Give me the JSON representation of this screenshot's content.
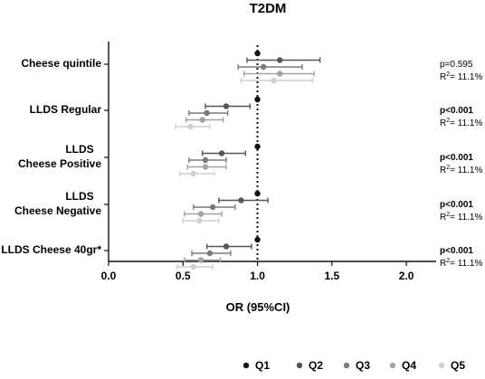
{
  "chart_data": {
    "type": "forest",
    "title": "T2DM",
    "xlabel": "OR (95%CI)",
    "xlim": [
      0.0,
      2.2
    ],
    "xticks": [
      "0.0",
      "0.5",
      "1.0",
      "1.5",
      "2.0"
    ],
    "reference_line": 1.0,
    "series": [
      {
        "name": "Q1",
        "color": "#111111"
      },
      {
        "name": "Q2",
        "color": "#555555"
      },
      {
        "name": "Q3",
        "color": "#7a7a7a"
      },
      {
        "name": "Q4",
        "color": "#a3a3a3"
      },
      {
        "name": "Q5",
        "color": "#cfcfcf"
      }
    ],
    "groups": [
      {
        "label": [
          "Cheese quintile"
        ],
        "stat": {
          "p_text": "p=0.595",
          "p_bold": false,
          "r2_text": "11.1%"
        },
        "estimates": [
          {
            "or": 1.0,
            "lo": 1.0,
            "hi": 1.0
          },
          {
            "or": 1.15,
            "lo": 0.93,
            "hi": 1.42
          },
          {
            "or": 1.04,
            "lo": 0.87,
            "hi": 1.3
          },
          {
            "or": 1.15,
            "lo": 0.91,
            "hi": 1.38
          },
          {
            "or": 1.11,
            "lo": 0.89,
            "hi": 1.37
          }
        ]
      },
      {
        "label": [
          "LLDS Regular"
        ],
        "stat": {
          "p_text": "p<0.001",
          "p_bold": true,
          "r2_text": "11.1%"
        },
        "estimates": [
          {
            "or": 1.0,
            "lo": 1.0,
            "hi": 1.0
          },
          {
            "or": 0.79,
            "lo": 0.65,
            "hi": 0.95
          },
          {
            "or": 0.66,
            "lo": 0.54,
            "hi": 0.8
          },
          {
            "or": 0.63,
            "lo": 0.52,
            "hi": 0.77
          },
          {
            "or": 0.55,
            "lo": 0.45,
            "hi": 0.68
          }
        ]
      },
      {
        "label": [
          "LLDS",
          "Cheese Positive"
        ],
        "stat": {
          "p_text": "p<0.001",
          "p_bold": true,
          "r2_text": "11.1%"
        },
        "estimates": [
          {
            "or": 1.0,
            "lo": 1.0,
            "hi": 1.0
          },
          {
            "or": 0.76,
            "lo": 0.63,
            "hi": 0.92
          },
          {
            "or": 0.65,
            "lo": 0.54,
            "hi": 0.79
          },
          {
            "or": 0.65,
            "lo": 0.53,
            "hi": 0.79
          },
          {
            "or": 0.57,
            "lo": 0.48,
            "hi": 0.71
          }
        ]
      },
      {
        "label": [
          "LLDS",
          "Cheese Negative"
        ],
        "stat": {
          "p_text": "p<0.001",
          "p_bold": true,
          "r2_text": "11.1%"
        },
        "estimates": [
          {
            "or": 1.0,
            "lo": 1.0,
            "hi": 1.0
          },
          {
            "or": 0.89,
            "lo": 0.74,
            "hi": 1.07
          },
          {
            "or": 0.7,
            "lo": 0.57,
            "hi": 0.85
          },
          {
            "or": 0.62,
            "lo": 0.51,
            "hi": 0.76
          },
          {
            "or": 0.61,
            "lo": 0.5,
            "hi": 0.74
          }
        ]
      },
      {
        "label": [
          "LLDS Cheese 40gr*"
        ],
        "stat": {
          "p_text": "p<0.001",
          "p_bold": true,
          "r2_text": "11.1%"
        },
        "estimates": [
          {
            "or": 1.0,
            "lo": 1.0,
            "hi": 1.0
          },
          {
            "or": 0.79,
            "lo": 0.66,
            "hi": 0.96
          },
          {
            "or": 0.68,
            "lo": 0.56,
            "hi": 0.82
          },
          {
            "or": 0.62,
            "lo": 0.51,
            "hi": 0.75
          },
          {
            "or": 0.57,
            "lo": 0.46,
            "hi": 0.7
          }
        ]
      }
    ]
  }
}
